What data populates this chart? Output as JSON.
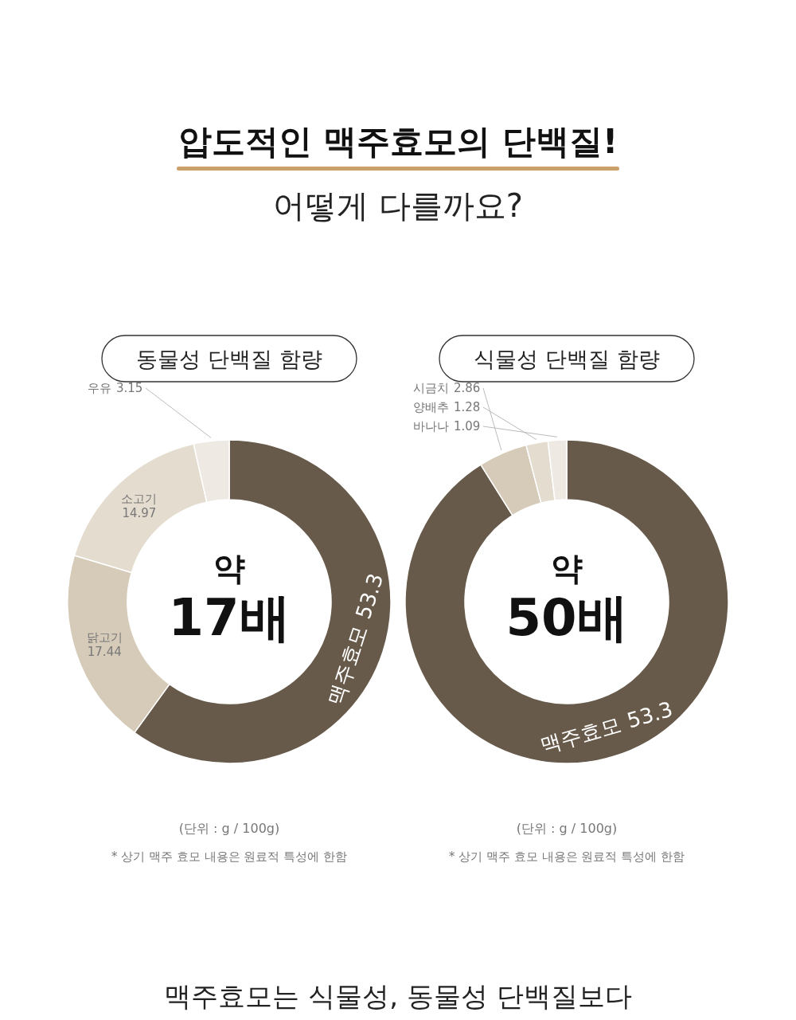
{
  "chart_data": [
    {
      "type": "other",
      "title": "압도적인 맥주효모의 단백질!",
      "subtitle": "어떻게 다를까요?"
    },
    {
      "type": "donut",
      "title": "동물성 단백질 함량",
      "categories": [
        "맥주효모",
        "닭고기",
        "소고기",
        "우유"
      ],
      "values": [
        53.3,
        17.44,
        14.97,
        3.15
      ],
      "colors": [
        "#675a4a",
        "#d6cbb8",
        "#e3dccf",
        "#eeeae3"
      ],
      "data_labels": true,
      "annotations": [
        "약",
        "17배",
        "(단위 : g / 100g)",
        "* 상기 맥주 효모 내용은 원료적 특성에 한함"
      ]
    },
    {
      "type": "donut",
      "title": "식물성 단백질 함량",
      "categories": [
        "맥주효모",
        "시금치",
        "양배추",
        "바나나"
      ],
      "values": [
        53.3,
        2.86,
        1.28,
        1.09
      ],
      "colors": [
        "#675a4a",
        "#d6cbb8",
        "#e3dccf",
        "#eeeae3"
      ],
      "data_labels": true,
      "annotations": [
        "약",
        "50배",
        "(단위 : g / 100g)",
        "* 상기 맥주 효모 내용은 원료적 특성에 한함"
      ]
    },
    {
      "type": "other",
      "title": "맥주효모는 식물성, 동물성 단백질보다"
    }
  ]
}
